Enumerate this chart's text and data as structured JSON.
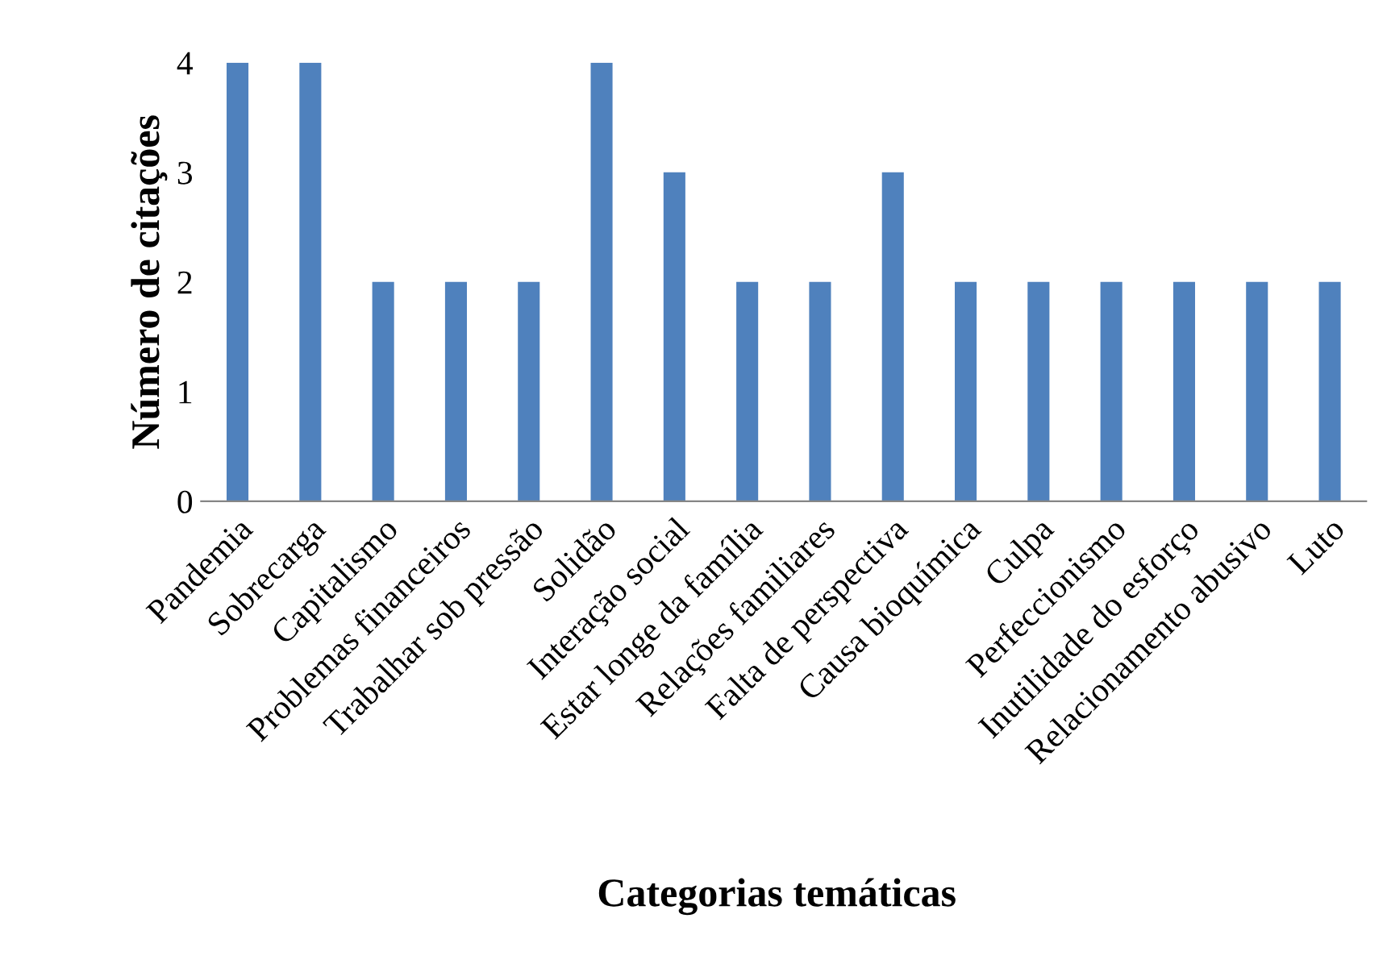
{
  "chart_data": {
    "type": "bar",
    "xlabel": "Categorias temáticas",
    "ylabel": "Número de citações",
    "categories": [
      "Pandemia",
      "Sobrecarga",
      "Capitalismo",
      "Problemas financeiros",
      "Trabalhar sob pressão",
      "Solidão",
      "Interação social",
      "Estar longe da família",
      "Relações familiares",
      "Falta de perspectiva",
      "Causa bioquímica",
      "Culpa",
      "Perfeccionismo",
      "Inutilidade do esforço",
      "Relacionamento abusivo",
      "Luto"
    ],
    "values": [
      4,
      4,
      2,
      2,
      2,
      4,
      3,
      2,
      2,
      3,
      2,
      2,
      2,
      2,
      2,
      2
    ],
    "color": "#4f81bd",
    "ylim": [
      0,
      4
    ],
    "yticks": [
      0,
      1,
      2,
      3,
      4
    ],
    "grid": false,
    "legend": false
  }
}
